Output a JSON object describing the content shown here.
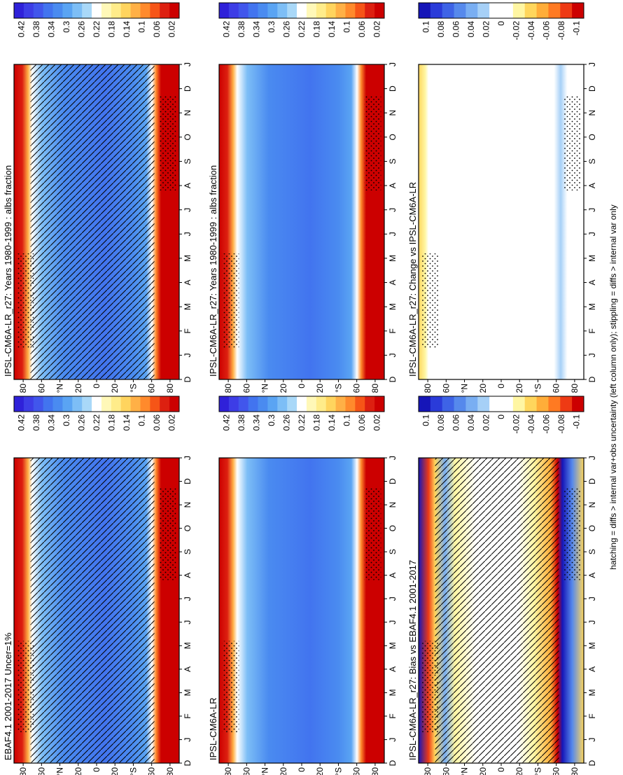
{
  "footer_note": "hatching = diffs > internal var+obs uncertainty (left column only); stippling = diffs > internal var only",
  "colors": {
    "abs_scale": [
      "#2f21d9",
      "#3d3de6",
      "#4156ec",
      "#4274ef",
      "#4a8bf0",
      "#5aa4f3",
      "#7dbef6",
      "#a9d8f8",
      "#ffffff",
      "#fff8b8",
      "#ffec8a",
      "#ffd45e",
      "#ffb046",
      "#ff8a2c",
      "#f65517",
      "#dd2010",
      "#cc0000"
    ],
    "diff_scale": [
      "#1515b8",
      "#2a3bd9",
      "#3e63e6",
      "#5689ec",
      "#79aef2",
      "#a6d0f7",
      "#ffffff",
      "#ffffff",
      "#fff6a3",
      "#ffd65c",
      "#ffad39",
      "#ff7a22",
      "#ee3a14",
      "#cc0000"
    ]
  },
  "chart_data": [
    {
      "type": "heatmap",
      "title": "IPSL-CM6A-LR_r27: Years 1980-1999 : albs fraction",
      "x_ticks": [
        "D",
        "J",
        "F",
        "M",
        "A",
        "M",
        "J",
        "J",
        "A",
        "S",
        "O",
        "N",
        "D",
        "J"
      ],
      "y_ticks": [
        "80",
        "60",
        "°N",
        "20",
        "0",
        "20",
        "°S",
        "60",
        "80"
      ],
      "colorbar": [
        "0.42",
        "0.38",
        "0.34",
        "0.3",
        "0.26",
        "0.22",
        "0.18",
        "0.14",
        "0.1",
        "0.06",
        "0.02"
      ],
      "hatching": true,
      "stippling": true
    },
    {
      "type": "heatmap",
      "title": "IPSL-CM6A-LR_r27: Years 1980-1999 : albs fraction",
      "x_ticks": [
        "D",
        "J",
        "F",
        "M",
        "A",
        "M",
        "J",
        "J",
        "A",
        "S",
        "O",
        "N",
        "D",
        "J"
      ],
      "y_ticks": [
        "80",
        "60",
        "°N",
        "20",
        "0",
        "20",
        "°S",
        "60",
        "80"
      ],
      "colorbar": [
        "0.42",
        "0.38",
        "0.34",
        "0.3",
        "0.26",
        "0.22",
        "0.18",
        "0.14",
        "0.1",
        "0.06",
        "0.02"
      ],
      "hatching": false,
      "stippling": true
    },
    {
      "type": "heatmap",
      "title": "EBAF4.1 2001-2017 Uncer=1%",
      "x_ticks": [
        "D",
        "J",
        "F",
        "M",
        "A",
        "M",
        "J",
        "J",
        "A",
        "S",
        "O",
        "N",
        "D",
        "J"
      ],
      "y_ticks": [
        "80",
        "60",
        "°N",
        "20",
        "0",
        "20",
        "°S",
        "60",
        "80"
      ],
      "colorbar": [
        "0.42",
        "0.38",
        "0.34",
        "0.3",
        "0.26",
        "0.22",
        "0.18",
        "0.14",
        "0.1",
        "0.06",
        "0.02"
      ],
      "hatching": true,
      "stippling": true
    },
    {
      "type": "heatmap",
      "title": "IPSL-CM6A-LR",
      "x_ticks": [
        "D",
        "J",
        "F",
        "M",
        "A",
        "M",
        "J",
        "J",
        "A",
        "S",
        "O",
        "N",
        "D",
        "J"
      ],
      "y_ticks": [
        "80",
        "60",
        "°N",
        "20",
        "0",
        "20",
        "°S",
        "60",
        "80"
      ],
      "colorbar": [
        "0.42",
        "0.38",
        "0.34",
        "0.3",
        "0.26",
        "0.22",
        "0.18",
        "0.14",
        "0.1",
        "0.06",
        "0.02"
      ],
      "hatching": false,
      "stippling": true
    },
    {
      "type": "heatmap",
      "title": "IPSL-CM6A-LR_r27: Bias vs EBAF4.1 2001-2017",
      "x_ticks": [
        "D",
        "J",
        "F",
        "M",
        "A",
        "M",
        "J",
        "J",
        "A",
        "S",
        "O",
        "N",
        "D",
        "J"
      ],
      "y_ticks": [
        "80",
        "60",
        "°N",
        "20",
        "0",
        "20",
        "°S",
        "60",
        "80"
      ],
      "colorbar": [
        "0.1",
        "0.08",
        "0.06",
        "0.04",
        "0.02",
        "0",
        "-0.02",
        "-0.04",
        "-0.06",
        "-0.08",
        "-0.1"
      ],
      "hatching": true,
      "stippling": true
    },
    {
      "type": "heatmap",
      "title": "IPSL-CM6A-LR_r27: Change vs IPSL-CM6A-LR",
      "x_ticks": [
        "D",
        "J",
        "F",
        "M",
        "A",
        "M",
        "J",
        "J",
        "A",
        "S",
        "O",
        "N",
        "D",
        "J"
      ],
      "y_ticks": [
        "80",
        "60",
        "°N",
        "20",
        "0",
        "20",
        "°S",
        "60",
        "80"
      ],
      "colorbar": [
        "0.1",
        "0.08",
        "0.06",
        "0.04",
        "0.02",
        "0",
        "-0.02",
        "-0.04",
        "-0.06",
        "-0.08",
        "-0.1"
      ],
      "hatching": false,
      "stippling": true
    }
  ]
}
